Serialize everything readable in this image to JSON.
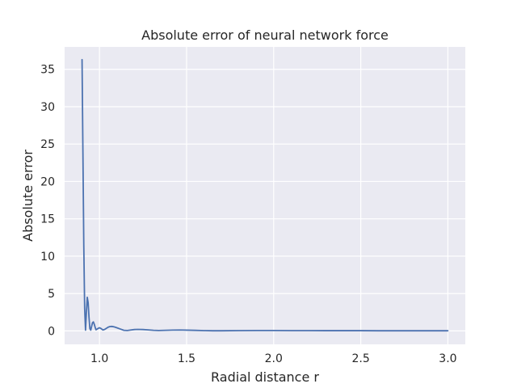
{
  "chart_data": {
    "type": "line",
    "title": "Absolute error of neural network force",
    "xlabel": "Radial distance r",
    "ylabel": "Absolute error",
    "xlim": [
      0.8,
      3.1
    ],
    "ylim": [
      -1.8,
      38.0
    ],
    "xticks": [
      1.0,
      1.5,
      2.0,
      2.5,
      3.0
    ],
    "xtick_labels": [
      "1.0",
      "1.5",
      "2.0",
      "2.5",
      "3.0"
    ],
    "yticks": [
      0,
      5,
      10,
      15,
      20,
      25,
      30,
      35
    ],
    "ytick_labels": [
      "0",
      "5",
      "10",
      "15",
      "20",
      "25",
      "30",
      "35"
    ],
    "grid": true,
    "colors": {
      "background": "#eaeaf2",
      "grid": "#ffffff",
      "line": "#4c72b0",
      "text": "#262626"
    },
    "series": [
      {
        "color": "#4c72b0",
        "x": [
          0.9,
          0.905,
          0.91,
          0.915,
          0.92,
          0.925,
          0.93,
          0.935,
          0.94,
          0.945,
          0.95,
          0.955,
          0.96,
          0.965,
          0.97,
          0.975,
          0.98,
          0.99,
          1.0,
          1.01,
          1.02,
          1.03,
          1.04,
          1.05,
          1.06,
          1.07,
          1.08,
          1.09,
          1.1,
          1.12,
          1.14,
          1.16,
          1.18,
          1.2,
          1.22,
          1.25,
          1.28,
          1.31,
          1.34,
          1.38,
          1.42,
          1.46,
          1.5,
          1.55,
          1.6,
          1.65,
          1.7,
          1.8,
          1.9,
          2.0,
          2.1,
          2.2,
          2.3,
          2.4,
          2.5,
          2.6,
          2.7,
          2.8,
          2.9,
          3.0
        ],
        "y": [
          36.3,
          24.0,
          11.5,
          3.0,
          0.1,
          2.5,
          4.5,
          3.8,
          1.8,
          0.3,
          0.1,
          0.6,
          1.1,
          1.2,
          0.9,
          0.5,
          0.15,
          0.3,
          0.42,
          0.3,
          0.12,
          0.2,
          0.35,
          0.5,
          0.58,
          0.6,
          0.56,
          0.5,
          0.42,
          0.25,
          0.08,
          0.05,
          0.12,
          0.18,
          0.2,
          0.18,
          0.13,
          0.08,
          0.05,
          0.08,
          0.11,
          0.12,
          0.1,
          0.07,
          0.04,
          0.02,
          0.02,
          0.04,
          0.05,
          0.05,
          0.04,
          0.04,
          0.03,
          0.03,
          0.03,
          0.02,
          0.02,
          0.02,
          0.02,
          0.02
        ]
      }
    ]
  }
}
